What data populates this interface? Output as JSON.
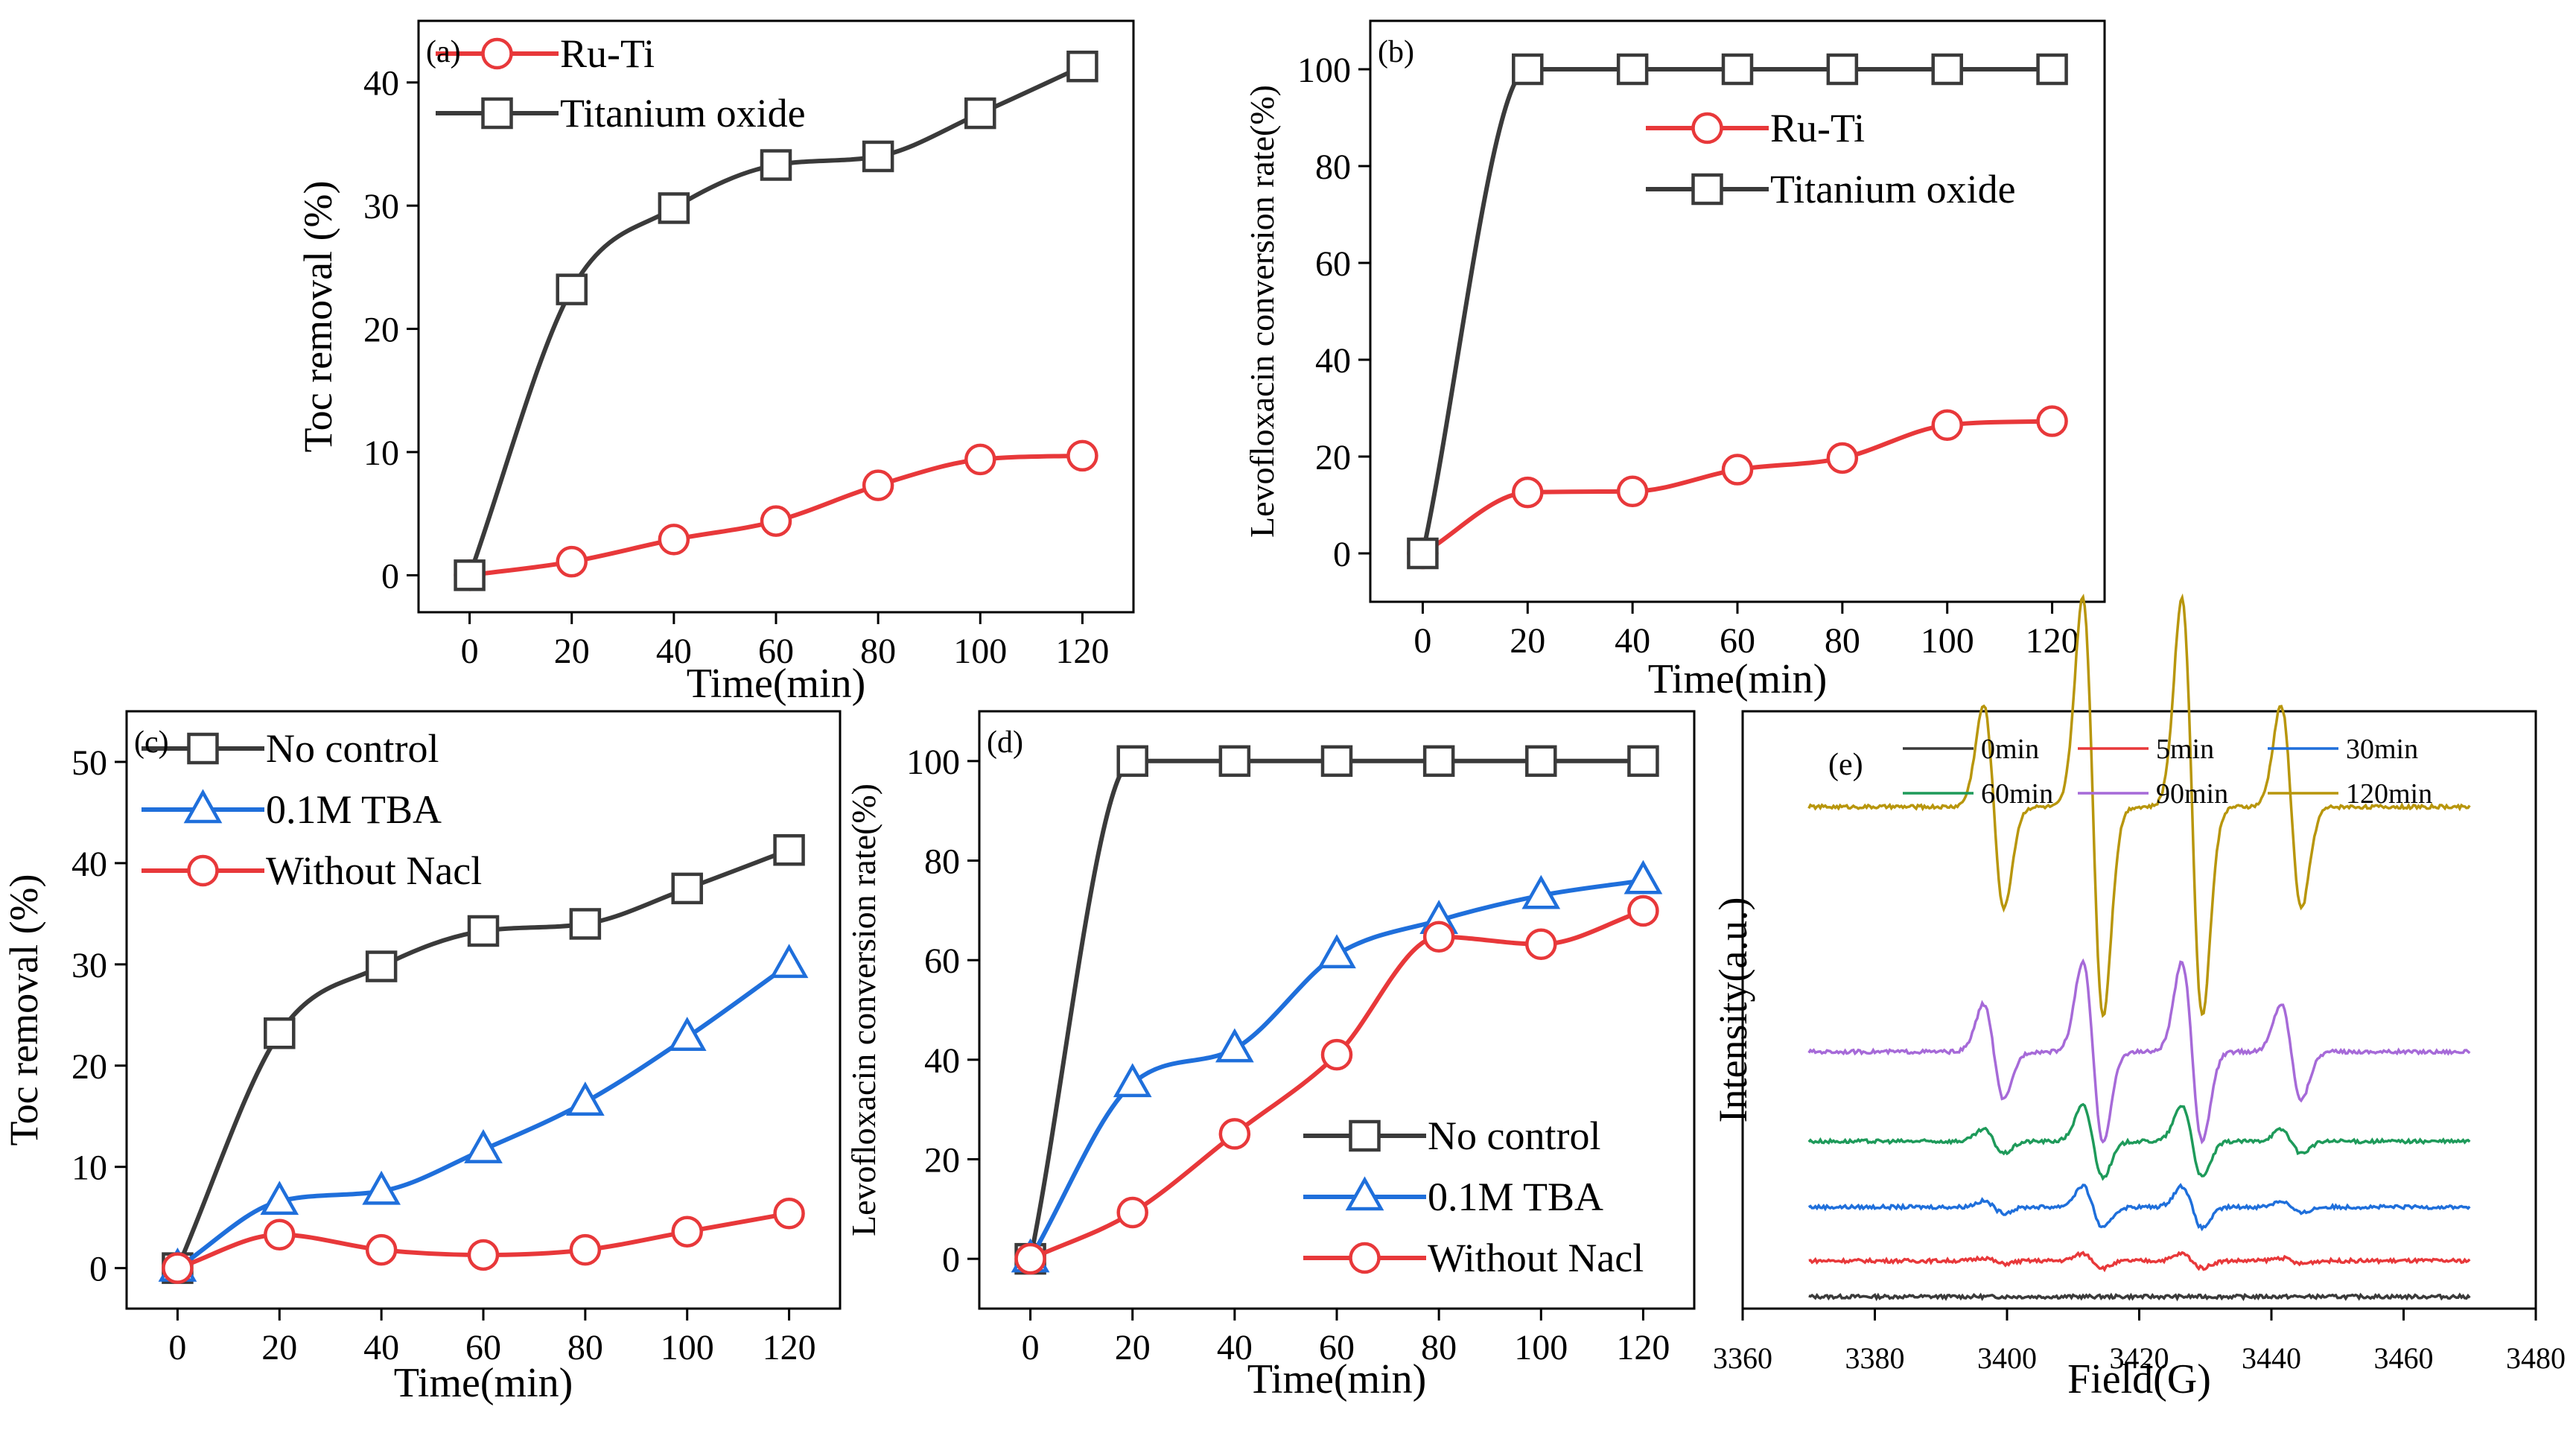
{
  "colors": {
    "black": "#3a3a3a",
    "red": "#e8383a",
    "blue": "#1f6fdb",
    "green": "#1e9a5a",
    "purple": "#a66ad8",
    "gold": "#b8960c"
  },
  "chart_data": [
    {
      "id": "a",
      "type": "line",
      "panel_label": "(a)",
      "xlabel": "Time(min)",
      "ylabel": "Toc removal (%)",
      "xlim": [
        -10,
        130
      ],
      "ylim": [
        -3,
        45
      ],
      "xticks": [
        0,
        20,
        40,
        60,
        80,
        100,
        120
      ],
      "yticks": [
        0,
        10,
        20,
        30,
        40
      ],
      "x": [
        0,
        20,
        40,
        60,
        80,
        100,
        120
      ],
      "series": [
        {
          "name": "Ru-Ti",
          "marker": "circle",
          "color": "red",
          "values": [
            0,
            1.1,
            2.9,
            4.4,
            7.3,
            9.4,
            9.7
          ]
        },
        {
          "name": "Titanium oxide",
          "marker": "square",
          "color": "black",
          "values": [
            0,
            23.2,
            29.8,
            33.3,
            34.0,
            37.5,
            41.3
          ]
        }
      ],
      "legend": "top-left"
    },
    {
      "id": "b",
      "type": "line",
      "panel_label": "(b)",
      "xlabel": "Time(min)",
      "ylabel": "Levofloxacin conversion rate(%)",
      "xlim": [
        -10,
        130
      ],
      "ylim": [
        -10,
        110
      ],
      "xticks": [
        0,
        20,
        40,
        60,
        80,
        100,
        120
      ],
      "yticks": [
        0,
        20,
        40,
        60,
        80,
        100
      ],
      "x": [
        0,
        20,
        40,
        60,
        80,
        100,
        120
      ],
      "series": [
        {
          "name": "Ru-Ti",
          "marker": "circle",
          "color": "red",
          "values": [
            0,
            12.6,
            12.8,
            17.3,
            19.7,
            26.5,
            27.3
          ]
        },
        {
          "name": "Titanium oxide",
          "marker": "square",
          "color": "black",
          "values": [
            0,
            100,
            100,
            100,
            100,
            100,
            100
          ]
        }
      ],
      "legend": "top-right"
    },
    {
      "id": "c",
      "type": "line",
      "panel_label": "(c)",
      "xlabel": "Time(min)",
      "ylabel": "Toc removal (%)",
      "xlim": [
        -10,
        130
      ],
      "ylim": [
        -4,
        55
      ],
      "xticks": [
        0,
        20,
        40,
        60,
        80,
        100,
        120
      ],
      "yticks": [
        0,
        10,
        20,
        30,
        40,
        50
      ],
      "x": [
        0,
        20,
        40,
        60,
        80,
        100,
        120
      ],
      "series": [
        {
          "name": "No control",
          "marker": "square",
          "color": "black",
          "values": [
            0,
            23.2,
            29.8,
            33.3,
            34.0,
            37.5,
            41.3
          ]
        },
        {
          "name": "0.1M TBA",
          "marker": "triangle",
          "color": "blue",
          "values": [
            0,
            6.6,
            7.6,
            11.7,
            16.4,
            22.8,
            30.0
          ]
        },
        {
          "name": "Without Nacl",
          "marker": "circle",
          "color": "red",
          "values": [
            0,
            3.3,
            1.8,
            1.3,
            1.8,
            3.6,
            5.4
          ]
        }
      ],
      "legend": "top-left"
    },
    {
      "id": "d",
      "type": "line",
      "panel_label": "(d)",
      "xlabel": "Time(min)",
      "ylabel": "Levofloxacin conversion rate(%)",
      "xlim": [
        -10,
        130
      ],
      "ylim": [
        -10,
        110
      ],
      "xticks": [
        0,
        20,
        40,
        60,
        80,
        100,
        120
      ],
      "yticks": [
        0,
        20,
        40,
        60,
        80,
        100
      ],
      "x": [
        0,
        20,
        40,
        60,
        80,
        100,
        120
      ],
      "series": [
        {
          "name": "No control",
          "marker": "square",
          "color": "black",
          "values": [
            0,
            100,
            100,
            100,
            100,
            100,
            100
          ]
        },
        {
          "name": "0.1M TBA",
          "marker": "triangle",
          "color": "blue",
          "values": [
            0,
            35.2,
            42.2,
            61.1,
            68.0,
            73.0,
            76.0
          ]
        },
        {
          "name": "Without Nacl",
          "marker": "circle",
          "color": "red",
          "values": [
            0,
            9.3,
            25.1,
            41.0,
            64.7,
            63.2,
            69.9
          ]
        }
      ],
      "legend": "bottom-right"
    },
    {
      "id": "e",
      "type": "line",
      "panel_label": "(e)",
      "xlabel": "Field(G)",
      "ylabel": "Intensity(a.u.)",
      "xlim": [
        3360,
        3480
      ],
      "xticks": [
        3360,
        3380,
        3400,
        3420,
        3440,
        3460,
        3480
      ],
      "field_range": [
        3370,
        3470
      ],
      "peaks": [
        3398,
        3413,
        3428,
        3443
      ],
      "series": [
        {
          "name": "0min",
          "color": "black",
          "baseline": 0.02,
          "amplitude": [
            0,
            0,
            0,
            0
          ]
        },
        {
          "name": "5min",
          "color": "red",
          "baseline": 0.08,
          "amplitude": [
            0.005,
            0.012,
            0.012,
            0.005
          ]
        },
        {
          "name": "30min",
          "color": "blue",
          "baseline": 0.17,
          "amplitude": [
            0.01,
            0.035,
            0.035,
            0.01
          ]
        },
        {
          "name": "60min",
          "color": "green",
          "baseline": 0.28,
          "amplitude": [
            0.02,
            0.06,
            0.06,
            0.02
          ]
        },
        {
          "name": "90min",
          "color": "purple",
          "baseline": 0.43,
          "amplitude": [
            0.08,
            0.15,
            0.15,
            0.08
          ]
        },
        {
          "name": "120min",
          "color": "gold",
          "baseline": 0.84,
          "amplitude": [
            0.17,
            0.35,
            0.35,
            0.17
          ]
        }
      ],
      "legend": "top"
    }
  ]
}
